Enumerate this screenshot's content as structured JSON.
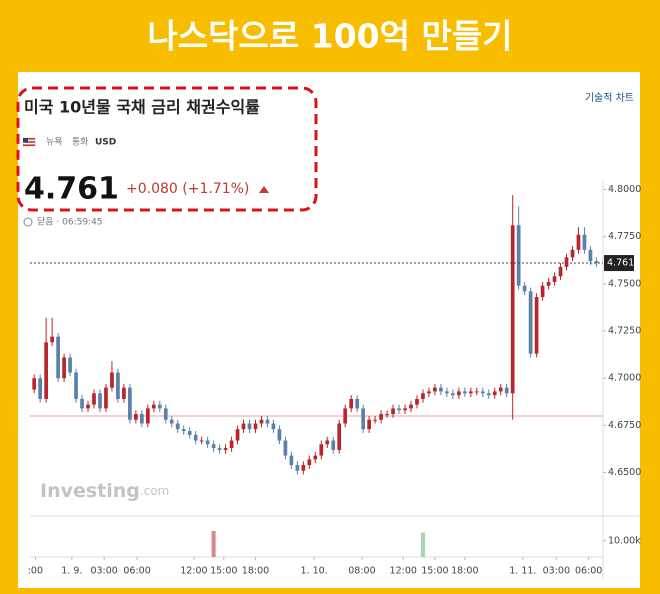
{
  "header": {
    "title": "나스닥으로 100억 만들기"
  },
  "link": "기술적 차트",
  "chart_data": {
    "type": "candlestick",
    "title": "미국 10년물 국채 금리 채권수익률",
    "exchange": "뉴욕",
    "currency_label": "통화",
    "currency": "USD",
    "price": "4.761",
    "change": "+0.080 (+1.71%)",
    "status": "닫음 · 06:59:45",
    "watermark": "Investing",
    "watermark_suffix": ".com",
    "up_color": "#b8262b",
    "down_color": "#5b80aa",
    "grid": false,
    "open": [
      4.694,
      4.7,
      4.689,
      4.719,
      4.722,
      4.7,
      4.711,
      4.703,
      4.689,
      4.684,
      4.686,
      4.692,
      4.684,
      4.695,
      4.703,
      4.689,
      4.695,
      4.678,
      4.681,
      4.676,
      4.684,
      4.686,
      4.684,
      4.678,
      4.676,
      4.673,
      4.672,
      4.67,
      4.667,
      4.667,
      4.665,
      4.663,
      4.662,
      4.663,
      4.667,
      4.673,
      4.676,
      4.673,
      4.676,
      4.678,
      4.676,
      4.673,
      4.667,
      4.659,
      4.654,
      4.651,
      4.654,
      4.657,
      4.659,
      4.665,
      4.667,
      4.662,
      4.676,
      4.684,
      4.689,
      4.684,
      4.673,
      4.678,
      4.678,
      4.681,
      4.681,
      4.684,
      4.683,
      4.684,
      4.686,
      4.689,
      4.692,
      4.693,
      4.695,
      4.693,
      4.692,
      4.691,
      4.693,
      4.692,
      4.693,
      4.693,
      4.692,
      4.691,
      4.693,
      4.695,
      4.692,
      4.781,
      4.749,
      4.746,
      4.713,
      4.743,
      4.749,
      4.751,
      4.754,
      4.759,
      4.764,
      4.768,
      4.776,
      4.768,
      4.762
    ],
    "high": [
      4.702,
      4.702,
      4.732,
      4.732,
      4.724,
      4.713,
      4.713,
      4.705,
      4.691,
      4.688,
      4.694,
      4.694,
      4.697,
      4.709,
      4.705,
      4.697,
      4.697,
      4.683,
      4.683,
      4.686,
      4.688,
      4.688,
      4.686,
      4.68,
      4.678,
      4.675,
      4.674,
      4.672,
      4.669,
      4.669,
      4.667,
      4.665,
      4.665,
      4.669,
      4.675,
      4.678,
      4.678,
      4.678,
      4.68,
      4.68,
      4.678,
      4.675,
      4.669,
      4.661,
      4.656,
      4.656,
      4.659,
      4.661,
      4.667,
      4.669,
      4.669,
      4.678,
      4.686,
      4.691,
      4.691,
      4.686,
      4.68,
      4.68,
      4.683,
      4.683,
      4.686,
      4.686,
      4.686,
      4.688,
      4.691,
      4.694,
      4.695,
      4.697,
      4.697,
      4.695,
      4.694,
      4.695,
      4.695,
      4.695,
      4.695,
      4.695,
      4.694,
      4.695,
      4.697,
      4.697,
      4.797,
      4.791,
      4.751,
      4.748,
      4.745,
      4.751,
      4.753,
      4.756,
      4.761,
      4.766,
      4.77,
      4.78,
      4.78,
      4.77,
      4.764
    ],
    "low": [
      4.692,
      4.687,
      4.687,
      4.717,
      4.698,
      4.698,
      4.701,
      4.687,
      4.682,
      4.682,
      4.684,
      4.682,
      4.682,
      4.693,
      4.687,
      4.687,
      4.676,
      4.676,
      4.674,
      4.674,
      4.682,
      4.682,
      4.676,
      4.674,
      4.671,
      4.67,
      4.668,
      4.665,
      4.665,
      4.663,
      4.661,
      4.66,
      4.66,
      4.661,
      4.665,
      4.671,
      4.671,
      4.671,
      4.674,
      4.674,
      4.671,
      4.665,
      4.657,
      4.652,
      4.649,
      4.649,
      4.652,
      4.655,
      4.657,
      4.663,
      4.66,
      4.66,
      4.674,
      4.682,
      4.682,
      4.671,
      4.671,
      4.676,
      4.676,
      4.679,
      4.679,
      4.681,
      4.681,
      4.682,
      4.684,
      4.687,
      4.69,
      4.691,
      4.691,
      4.69,
      4.689,
      4.689,
      4.69,
      4.69,
      4.691,
      4.69,
      4.689,
      4.689,
      4.691,
      4.69,
      4.678,
      4.747,
      4.744,
      4.711,
      4.711,
      4.741,
      4.747,
      4.749,
      4.752,
      4.757,
      4.762,
      4.766,
      4.766,
      4.76,
      4.759
    ],
    "close": [
      4.7,
      4.689,
      4.719,
      4.722,
      4.7,
      4.711,
      4.703,
      4.689,
      4.684,
      4.686,
      4.692,
      4.684,
      4.695,
      4.703,
      4.689,
      4.695,
      4.678,
      4.681,
      4.676,
      4.684,
      4.686,
      4.684,
      4.678,
      4.676,
      4.673,
      4.672,
      4.67,
      4.667,
      4.667,
      4.665,
      4.663,
      4.662,
      4.663,
      4.667,
      4.673,
      4.676,
      4.673,
      4.676,
      4.678,
      4.676,
      4.673,
      4.667,
      4.659,
      4.654,
      4.651,
      4.654,
      4.657,
      4.659,
      4.665,
      4.667,
      4.662,
      4.676,
      4.684,
      4.689,
      4.684,
      4.673,
      4.678,
      4.678,
      4.681,
      4.681,
      4.684,
      4.683,
      4.684,
      4.686,
      4.689,
      4.692,
      4.693,
      4.695,
      4.693,
      4.692,
      4.691,
      4.693,
      4.692,
      4.693,
      4.693,
      4.692,
      4.691,
      4.693,
      4.695,
      4.692,
      4.781,
      4.749,
      4.746,
      4.713,
      4.743,
      4.749,
      4.751,
      4.754,
      4.759,
      4.764,
      4.768,
      4.776,
      4.768,
      4.762,
      4.761
    ],
    "last": {
      "value": 4.761,
      "label": "4.7610"
    },
    "reference_line": 4.68,
    "reference_color": "#e8a0a0",
    "xlim": [
      -0.7,
      95.1
    ],
    "xticks": [
      {
        "value": 0.2,
        "label": ":00"
      },
      {
        "value": 6.3,
        "label": "1. 9."
      },
      {
        "value": 11.7,
        "label": "03:00"
      },
      {
        "value": 17.2,
        "label": "06:00"
      },
      {
        "value": 26.7,
        "label": "12:00"
      },
      {
        "value": 31.7,
        "label": "15:00"
      },
      {
        "value": 37,
        "label": "18:00"
      },
      {
        "value": 46.8,
        "label": "1. 10."
      },
      {
        "value": 54.8,
        "label": "08:00"
      },
      {
        "value": 61.7,
        "label": "12:00"
      },
      {
        "value": 67,
        "label": "15:00"
      },
      {
        "value": 72,
        "label": "18:00"
      },
      {
        "value": 81.7,
        "label": "1. 11."
      },
      {
        "value": 87.3,
        "label": "03:00"
      },
      {
        "value": 92.7,
        "label": "06:00"
      }
    ],
    "ylim": [
      4.627,
      4.805
    ],
    "yticks": [
      {
        "value": 4.65,
        "label": "4.6500"
      },
      {
        "value": 4.675,
        "label": "4.6750"
      },
      {
        "value": 4.7,
        "label": "4.7000"
      },
      {
        "value": 4.725,
        "label": "4.7250"
      },
      {
        "value": 4.75,
        "label": "4.7500"
      },
      {
        "value": 4.775,
        "label": "4.7750"
      },
      {
        "value": 4.8,
        "label": "4.8000"
      }
    ],
    "volume": {
      "x": [
        30,
        65
      ],
      "values": [
        16000,
        15000
      ],
      "colors": [
        "#d9848a",
        "#a3d6ad"
      ],
      "ylim": [
        0,
        24000
      ],
      "yticks": [
        {
          "value": 10000,
          "label": "10.00k"
        }
      ]
    }
  }
}
